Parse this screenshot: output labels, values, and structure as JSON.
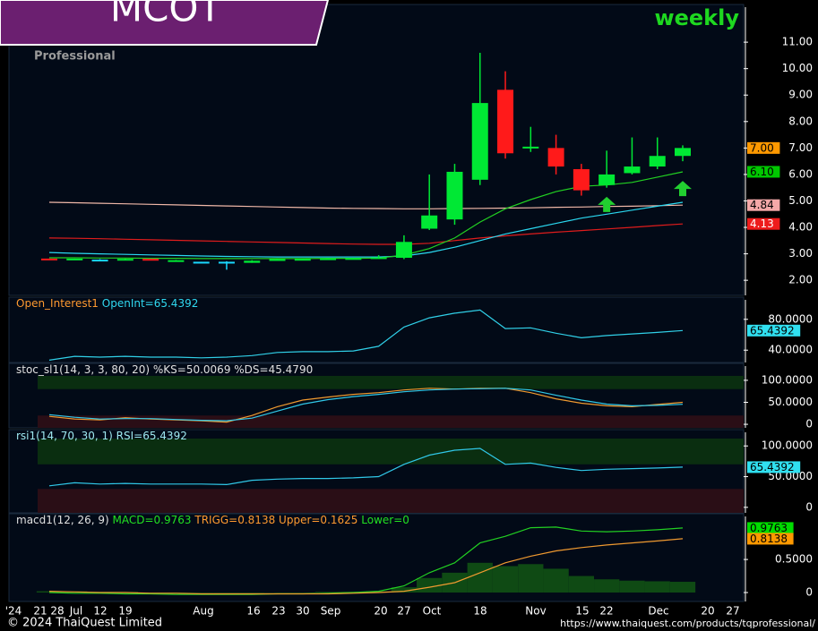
{
  "header": {
    "symbol": "MCOT",
    "timeframe": "weekly",
    "brand": "Professional"
  },
  "footer": {
    "copyright": "© 2024 ThaiQuest Limited",
    "url": "https://www.thaiquest.com/products/tqprofessional/"
  },
  "x_axis": {
    "labels": [
      "'24",
      "21",
      "28",
      "Jul",
      "12",
      "19",
      "Aug",
      "16",
      "23",
      "30",
      "Sep",
      "20",
      "27",
      "Oct",
      "18",
      "Nov",
      "15",
      "22",
      "Dec",
      "20",
      "27"
    ]
  },
  "chart_data": [
    {
      "type": "candlestick",
      "open": [
        2.82,
        2.78,
        2.78,
        2.78,
        2.81,
        2.74,
        2.7,
        2.7,
        2.66,
        2.76,
        2.8,
        2.81,
        2.82,
        2.84,
        2.85,
        3.95,
        4.3,
        5.8,
        9.2,
        7.0,
        7.0,
        6.2,
        5.6,
        6.05,
        6.3,
        6.7
      ],
      "high": [
        2.82,
        2.82,
        2.8,
        2.82,
        2.81,
        2.77,
        2.7,
        2.72,
        2.76,
        2.82,
        2.82,
        2.84,
        2.85,
        2.95,
        3.7,
        6.0,
        6.4,
        10.6,
        9.9,
        7.8,
        7.5,
        6.4,
        6.9,
        7.4,
        7.4,
        7.1
      ],
      "low": [
        2.78,
        2.78,
        2.76,
        2.78,
        2.77,
        2.73,
        2.68,
        2.4,
        2.66,
        2.76,
        2.78,
        2.8,
        2.8,
        2.82,
        2.8,
        3.9,
        4.1,
        5.6,
        6.6,
        6.85,
        6.0,
        5.2,
        5.5,
        6.0,
        6.2,
        6.5
      ],
      "close": [
        2.78,
        2.82,
        2.78,
        2.81,
        2.77,
        2.76,
        2.7,
        2.7,
        2.74,
        2.8,
        2.81,
        2.83,
        2.84,
        2.87,
        3.45,
        4.45,
        6.1,
        8.7,
        6.8,
        7.05,
        6.3,
        5.4,
        6.0,
        6.3,
        6.7,
        7.0
      ],
      "up_color": "#00e834",
      "down_color": "#ff1a1a",
      "flat_color": "#19d8ff",
      "series": [
        {
          "color": "#f0b8a8",
          "values": [
            4.95,
            4.93,
            4.91,
            4.89,
            4.87,
            4.85,
            4.83,
            4.81,
            4.79,
            4.77,
            4.75,
            4.73,
            4.72,
            4.71,
            4.7,
            4.7,
            4.71,
            4.72,
            4.73,
            4.74,
            4.76,
            4.77,
            4.79,
            4.8,
            4.82,
            4.84
          ]
        },
        {
          "color": "#e01c1c",
          "values": [
            3.6,
            3.59,
            3.57,
            3.55,
            3.53,
            3.51,
            3.49,
            3.47,
            3.45,
            3.43,
            3.41,
            3.39,
            3.37,
            3.36,
            3.36,
            3.4,
            3.5,
            3.6,
            3.68,
            3.75,
            3.82,
            3.88,
            3.94,
            4.0,
            4.07,
            4.13
          ]
        },
        {
          "color": "#2ad8f0",
          "values": [
            3.05,
            3.02,
            3.0,
            2.98,
            2.96,
            2.94,
            2.92,
            2.9,
            2.89,
            2.88,
            2.88,
            2.88,
            2.88,
            2.88,
            2.92,
            3.05,
            3.25,
            3.5,
            3.75,
            3.95,
            4.15,
            4.35,
            4.5,
            4.65,
            4.8,
            4.95
          ]
        },
        {
          "color": "#22d022",
          "values": [
            2.85,
            2.85,
            2.84,
            2.84,
            2.83,
            2.83,
            2.82,
            2.82,
            2.82,
            2.82,
            2.82,
            2.83,
            2.83,
            2.84,
            2.95,
            3.2,
            3.6,
            4.2,
            4.7,
            5.05,
            5.35,
            5.55,
            5.6,
            5.7,
            5.9,
            6.1
          ]
        }
      ],
      "up_signals": [
        {
          "index": 22,
          "value": 4.85
        },
        {
          "index": 25,
          "value": 5.45
        }
      ],
      "ylim": [
        1.43,
        11.41
      ],
      "yticks": [
        {
          "value": 2,
          "label": "2.00"
        },
        {
          "value": 3,
          "label": "3.00"
        },
        {
          "value": 4,
          "label": "4.00"
        },
        {
          "value": 5,
          "label": "5.00"
        },
        {
          "value": 6,
          "label": "6.00"
        },
        {
          "value": 7,
          "label": "7.00"
        },
        {
          "value": 8,
          "label": "8.00"
        },
        {
          "value": 9,
          "label": "9.00"
        },
        {
          "value": 10,
          "label": "10.00"
        },
        {
          "value": 11,
          "label": "11.00"
        }
      ],
      "value_tags": [
        {
          "value": 7,
          "label": "7.00",
          "color": "#ff9900",
          "text_color": "#000000"
        },
        {
          "value": 6.1,
          "label": "6.10",
          "color": "#00c800",
          "text_color": "#000000"
        },
        {
          "value": 4.84,
          "label": "4.84",
          "color": "#f4a8a8",
          "text_color": "#000000"
        },
        {
          "value": 4.13,
          "label": "4.13",
          "color": "#ee1c1c",
          "text_color": "#ffffff"
        }
      ]
    },
    {
      "type": "line",
      "header": [
        {
          "text": "Open_Interest1",
          "color": "#ff9a30"
        },
        {
          "text": "OpenInt=65.4392",
          "color": "#30d8f0"
        }
      ],
      "series": [
        {
          "color": "#30d0e8",
          "values": [
            27,
            32,
            31,
            32,
            31,
            31,
            30,
            31,
            33,
            37,
            38,
            38,
            39,
            45,
            70,
            82,
            88,
            92,
            68,
            69,
            62,
            56,
            59,
            61,
            63,
            65.4392
          ]
        }
      ],
      "ylim": [
        24,
        96
      ],
      "yticks": [
        {
          "value": 40,
          "label": "40.0000"
        },
        {
          "value": 80,
          "label": "80.0000"
        }
      ],
      "value_tags": [
        {
          "value": 65.4392,
          "label": "65.4392",
          "color": "#30e0f0",
          "text_color": "#000000"
        }
      ]
    },
    {
      "type": "line",
      "header": [
        {
          "text": "stoc_sl1(14, 3, 3, 80, 20) %KS=50.0069 %DS=45.4790",
          "color": "#e0e0e0"
        }
      ],
      "bands": [
        {
          "from": 80,
          "to": 110,
          "color": "#0a2e10"
        },
        {
          "from": -8,
          "to": 20,
          "color": "#2a0e16"
        }
      ],
      "series": [
        {
          "color": "#f09a30",
          "values": [
            18,
            12,
            10,
            15,
            12,
            10,
            8,
            5,
            20,
            40,
            55,
            62,
            68,
            72,
            78,
            82,
            80,
            82,
            82,
            72,
            58,
            48,
            42,
            40,
            45,
            50.0069
          ]
        },
        {
          "color": "#30c8e8",
          "values": [
            22,
            16,
            12,
            13,
            13,
            11,
            9,
            8,
            14,
            30,
            46,
            56,
            63,
            68,
            74,
            78,
            80,
            81,
            82,
            78,
            66,
            55,
            46,
            42,
            43,
            45.479
          ]
        }
      ],
      "ylim": [
        -8,
        110
      ],
      "yticks": [
        0,
        {
          "value": 50,
          "label": "50.0000"
        },
        {
          "value": 100,
          "label": "100.0000"
        }
      ]
    },
    {
      "type": "line",
      "header": [
        {
          "text": "rsi1(14, 70, 30, 1) RSI=65.4392",
          "color": "#9ee8f0"
        }
      ],
      "bands": [
        {
          "from": 70,
          "to": 112,
          "color": "#0a2e10"
        },
        {
          "from": -9,
          "to": 30,
          "color": "#2a0e16"
        }
      ],
      "series": [
        {
          "color": "#30c8e8",
          "values": [
            35,
            40,
            38,
            39,
            38,
            38,
            38,
            37,
            44,
            46,
            47,
            47,
            48,
            50,
            70,
            85,
            93,
            96,
            70,
            72,
            65,
            60,
            62,
            63,
            64,
            65.4392
          ]
        }
      ],
      "ylim": [
        -9,
        112
      ],
      "yticks": [
        0,
        {
          "value": 50,
          "label": "50.0000"
        },
        {
          "value": 100,
          "label": "100.0000"
        }
      ],
      "value_tags": [
        {
          "value": 65.4392,
          "label": "65.4392",
          "color": "#30e0f0",
          "text_color": "#000000"
        }
      ]
    },
    {
      "type": "macd",
      "header": [
        {
          "text": "macd1(12, 26, 9)",
          "color": "#e0e0e0"
        },
        {
          "text": "MACD=0.9763",
          "color": "#22e022"
        },
        {
          "text": "TRIGG=0.8138",
          "color": "#ff9a30"
        },
        {
          "text": "Upper=0.1625",
          "color": "#ff9a30"
        },
        {
          "text": "Lower=0",
          "color": "#22e022"
        }
      ],
      "histogram": {
        "color": "#0f4a14",
        "values": [
          0.02,
          0.02,
          0.01,
          0.01,
          0,
          0,
          -0.01,
          -0.01,
          -0.01,
          0,
          0,
          0.01,
          0.01,
          0.02,
          0.08,
          0.22,
          0.3,
          0.45,
          0.4,
          0.43,
          0.36,
          0.25,
          0.2,
          0.18,
          0.17,
          0.1625
        ]
      },
      "series": [
        {
          "color": "#22d022",
          "values": [
            0,
            -0.01,
            -0.01,
            -0.02,
            -0.02,
            -0.03,
            -0.03,
            -0.03,
            -0.03,
            -0.02,
            -0.02,
            -0.01,
            0,
            0.02,
            0.1,
            0.3,
            0.45,
            0.75,
            0.85,
            0.98,
            0.99,
            0.93,
            0.92,
            0.93,
            0.95,
            0.9763
          ]
        },
        {
          "color": "#f09a30",
          "values": [
            0.02,
            0.01,
            0,
            0,
            -0.01,
            -0.01,
            -0.02,
            -0.02,
            -0.02,
            -0.02,
            -0.02,
            -0.02,
            -0.01,
            0,
            0.02,
            0.08,
            0.15,
            0.3,
            0.45,
            0.55,
            0.63,
            0.68,
            0.72,
            0.75,
            0.78,
            0.8138
          ]
        }
      ],
      "ylim": [
        -0.135,
        1.07
      ],
      "yticks": [
        0,
        {
          "value": 0.5,
          "label": "0.5000"
        }
      ],
      "value_tags": [
        {
          "value": 0.9763,
          "label": "0.9763",
          "color": "#00dd00",
          "text_color": "#000000"
        },
        {
          "value": 0.8138,
          "label": "0.8138",
          "color": "#ff9900",
          "text_color": "#000000"
        }
      ]
    }
  ]
}
